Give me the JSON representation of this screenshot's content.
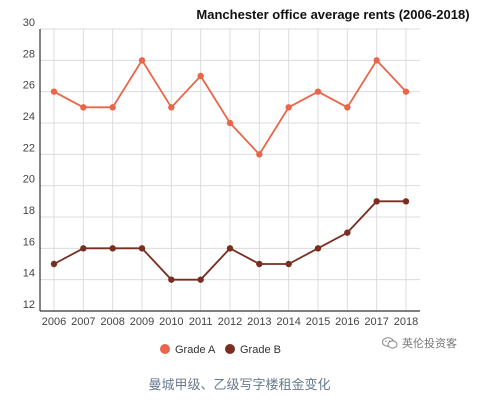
{
  "chart_data": {
    "type": "line",
    "title": "Manchester office average rents (2006-2018)",
    "xlabel": "",
    "ylabel": "",
    "categories": [
      "2006",
      "2007",
      "2008",
      "2009",
      "2010",
      "2011",
      "2012",
      "2013",
      "2014",
      "2015",
      "2016",
      "2017",
      "2018"
    ],
    "series": [
      {
        "name": "Grade A",
        "color": "#e8664a",
        "values": [
          26,
          25,
          25,
          28,
          25,
          27,
          24,
          22,
          25,
          26,
          25,
          28,
          26
        ]
      },
      {
        "name": "Grade B",
        "color": "#7a2e22",
        "values": [
          15,
          16,
          16,
          16,
          14,
          14,
          16,
          15,
          15,
          16,
          17,
          19,
          19
        ]
      }
    ],
    "ylim": [
      12,
      30
    ],
    "yticks": [
      12,
      14,
      16,
      18,
      20,
      22,
      24,
      26,
      28,
      30
    ],
    "grid": true,
    "legend_position": "bottom"
  },
  "caption": "曼城甲级、乙级写字楼租金变化",
  "watermark": {
    "text": "英伦投资客",
    "icon": "wechat-icon"
  }
}
